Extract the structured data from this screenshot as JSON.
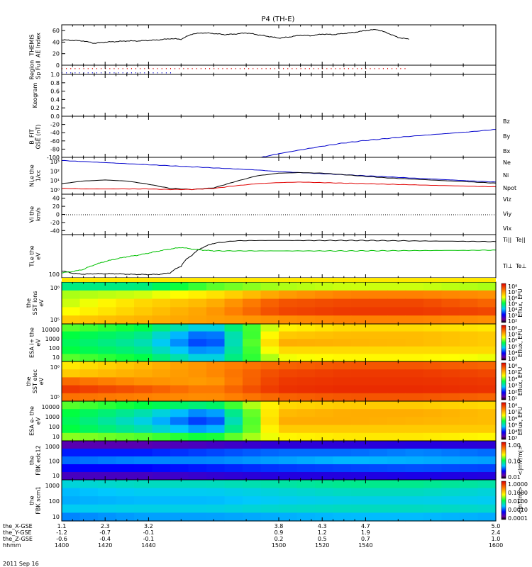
{
  "title": "P4 (TH-E)",
  "date_label": "2011 Sep 16",
  "x_axis": {
    "rows": [
      {
        "label": "the_X-GSE",
        "values": [
          "1.1",
          "2.3",
          "3.2",
          "3.8",
          "4.3",
          "4.7",
          "5.0"
        ]
      },
      {
        "label": "the_Y-GSE",
        "values": [
          "-1.2",
          "-0.7",
          "-0.1",
          "0.9",
          "1.2",
          "1.9",
          "2.4"
        ]
      },
      {
        "label": "the_Z-GSE",
        "values": [
          "-0.6",
          "-0.4",
          "-0.1",
          "0.2",
          "0.5",
          "0.7",
          "1.0"
        ]
      },
      {
        "label": "hhmm",
        "values": [
          "1400",
          "1420",
          "1440",
          "1500",
          "1520",
          "1540",
          "1600"
        ]
      }
    ],
    "minor_per_major": 4
  },
  "colors": {
    "red": "#e00000",
    "green": "#00c000",
    "blue": "#0000cc",
    "black": "#000000"
  },
  "chart_data": [
    {
      "type": "line",
      "panel": "ae",
      "ylabel": [
        "THEMIS",
        "AE Index"
      ],
      "ylim": [
        0,
        70
      ],
      "yticks": [
        "0",
        "20",
        "40",
        "60"
      ],
      "x": [
        1400,
        1405,
        1410,
        1415,
        1420,
        1425,
        1430,
        1435,
        1440,
        1445,
        1450,
        1455,
        1460,
        1465,
        1470,
        1475,
        1480,
        1485,
        1490,
        1495,
        1500,
        1505,
        1510,
        1515,
        1520,
        1525,
        1530,
        1535,
        1540,
        1545,
        1550,
        1555,
        1560
      ],
      "series": [
        {
          "color": "black",
          "values": [
            44,
            43,
            42,
            38,
            40,
            41,
            42,
            42,
            43,
            44,
            46,
            45,
            54,
            56,
            55,
            53,
            54,
            56,
            53,
            50,
            47,
            49,
            52,
            51,
            54,
            53,
            55,
            57,
            60,
            62,
            56,
            48,
            45
          ]
        }
      ]
    },
    {
      "type": "scatter",
      "panel": "region",
      "ylabel": [
        "Region",
        "Sp Full"
      ],
      "rows": [
        {
          "color": "red",
          "x_start": 1400,
          "x_end": 1558
        },
        {
          "color": "blue",
          "x_start": 1400,
          "x_end": 1450
        }
      ]
    },
    {
      "type": "line",
      "panel": "keogram",
      "ylabel": [
        "Keogram"
      ],
      "ylim": [
        0,
        1
      ],
      "yticks": [
        "0.0",
        "0.2",
        "0.4",
        "0.6",
        "0.8",
        "1.0"
      ],
      "series": []
    },
    {
      "type": "line",
      "panel": "bfield",
      "ylabel": [
        "B_FIT",
        "GSE (nT)"
      ],
      "ylim": [
        -100,
        0
      ],
      "yticks": [
        "-100",
        "-80",
        "-60",
        "-40",
        "-20"
      ],
      "legend": [
        {
          "label": "Bz",
          "color": "red"
        },
        {
          "label": "By",
          "color": "green"
        },
        {
          "label": "Bx",
          "color": "blue"
        }
      ],
      "x": [
        1492,
        1500,
        1510,
        1520,
        1530,
        1540,
        1550,
        1560,
        1570,
        1580,
        1590,
        1600
      ],
      "series": [
        {
          "name": "Bx",
          "color": "blue",
          "values": [
            -100,
            -91,
            -82,
            -73,
            -65,
            -59,
            -54,
            -49,
            -45,
            -41,
            -37,
            -32
          ]
        }
      ]
    },
    {
      "type": "line",
      "panel": "density",
      "ylabel": [
        "Ni,e the",
        "1/cc"
      ],
      "ylim": [
        0,
        3.5
      ],
      "log": true,
      "yticks": [
        "10³",
        "10²",
        "10¹",
        "10⁰"
      ],
      "legend": [
        {
          "label": "Ne",
          "color": "red"
        },
        {
          "label": "Ni",
          "color": "black"
        },
        {
          "label": "Npot",
          "color": "blue"
        }
      ],
      "x": [
        1400,
        1410,
        1420,
        1430,
        1440,
        1450,
        1460,
        1470,
        1480,
        1490,
        1500,
        1510,
        1520,
        1530,
        1540,
        1550,
        1560,
        1570,
        1580,
        1590,
        1600
      ],
      "series": [
        {
          "name": "Npot",
          "color": "blue",
          "values": [
            3.2,
            3.1,
            3.0,
            2.9,
            2.8,
            2.7,
            2.6,
            2.5,
            2.4,
            2.3,
            2.15,
            2.05,
            1.95,
            1.85,
            1.75,
            1.65,
            1.55,
            1.45,
            1.35,
            1.25,
            1.15
          ]
        },
        {
          "name": "Ni",
          "color": "black",
          "values": [
            1.0,
            1.25,
            1.35,
            1.25,
            0.95,
            0.55,
            0.45,
            0.6,
            1.2,
            1.75,
            2.0,
            2.05,
            2.0,
            1.85,
            1.7,
            1.55,
            1.45,
            1.35,
            1.25,
            1.15,
            1.05
          ]
        },
        {
          "name": "Ne",
          "color": "red",
          "values": [
            0.55,
            0.5,
            0.5,
            0.5,
            0.5,
            0.45,
            0.45,
            0.55,
            0.8,
            1.0,
            1.1,
            1.15,
            1.1,
            1.05,
            1.0,
            0.95,
            0.9,
            0.85,
            0.8,
            0.75,
            0.7
          ]
        }
      ]
    },
    {
      "type": "line",
      "panel": "velocity",
      "ylabel": [
        "Vi the",
        "km/s"
      ],
      "ylim": [
        -50,
        50
      ],
      "yticks": [
        "-40",
        "-20",
        "0",
        "20",
        "40"
      ],
      "legend": [
        {
          "label": "Viz",
          "color": "red"
        },
        {
          "label": "Viy",
          "color": "green"
        },
        {
          "label": "Vix",
          "color": "blue"
        }
      ],
      "series": []
    },
    {
      "type": "line",
      "panel": "temperature",
      "ylabel": [
        "Ti,e the",
        "eV"
      ],
      "ylim": [
        70,
        5000
      ],
      "log": true,
      "yticks": [
        "100"
      ],
      "legend": [
        {
          "label": "Ti||",
          "color": "green"
        },
        {
          "label": "Te||",
          "color": "black"
        },
        {
          "label": "Ti⊥",
          "color": "blue"
        },
        {
          "label": "Te⊥",
          "color": "red"
        }
      ],
      "x": [
        1400,
        1405,
        1410,
        1415,
        1420,
        1425,
        1430,
        1435,
        1440,
        1445,
        1450,
        1455,
        1460,
        1465,
        1470,
        1480,
        1490,
        1500,
        1510,
        1520,
        1530,
        1540,
        1550,
        1560,
        1570,
        1580,
        1590,
        1600
      ],
      "series": [
        {
          "name": "Te||",
          "color": "black",
          "values": [
            140,
            110,
            100,
            105,
            105,
            105,
            100,
            98,
            97,
            99,
            115,
            220,
            650,
            1400,
            2100,
            2700,
            2800,
            2800,
            2800,
            2800,
            2800,
            2800,
            2750,
            2700,
            2650,
            2600,
            2550,
            2500
          ]
        },
        {
          "name": "Ti||",
          "color": "green",
          "values": [
            115,
            130,
            160,
            250,
            350,
            450,
            560,
            650,
            800,
            1000,
            1200,
            1400,
            1200,
            1080,
            1000,
            1000,
            1000,
            1000,
            1000,
            1000,
            1000,
            1010,
            1020,
            1030,
            1040,
            1050,
            1060,
            1080
          ]
        }
      ]
    },
    {
      "type": "heatmap",
      "panel": "sst_ions",
      "ylabel": [
        "the",
        "SST ions",
        "eV"
      ],
      "yticks": [
        "10⁶",
        "10⁵"
      ],
      "colorbar": {
        "label": "Eflux, EFU",
        "ticks": [
          "10⁸",
          "10⁷",
          "10⁶",
          "10⁵",
          "10⁴",
          "10³",
          "10²"
        ]
      },
      "columns": [
        "1400",
        "1420",
        "1440",
        "1500",
        "1520",
        "1540",
        "1600"
      ],
      "rows": [
        [
          0.45,
          0.45,
          0.55,
          0.6,
          0.62,
          0.62,
          0.6
        ],
        [
          0.6,
          0.62,
          0.68,
          0.78,
          0.82,
          0.82,
          0.8
        ],
        [
          0.62,
          0.7,
          0.75,
          0.88,
          0.9,
          0.9,
          0.86
        ],
        [
          0.65,
          0.72,
          0.78,
          0.9,
          0.92,
          0.92,
          0.9
        ],
        [
          0.72,
          0.75,
          0.78,
          0.8,
          0.82,
          0.82,
          0.8
        ]
      ]
    },
    {
      "type": "heatmap",
      "panel": "esa_ions",
      "ylabel": [
        "ESA i+ the",
        "eV"
      ],
      "yticks": [
        "10000",
        "1000",
        "100",
        "10"
      ],
      "colorbar": {
        "label": "Eflux, EFU",
        "ticks": [
          "10⁸",
          "10⁷",
          "10⁶",
          "10⁵",
          "10⁴",
          "10³"
        ]
      },
      "columns": [
        "1400",
        "1420",
        "1440",
        "1500",
        "1520",
        "1540",
        "1600"
      ],
      "rows": [
        [
          0.55,
          0.5,
          0.35,
          0.66,
          0.7,
          0.7,
          0.68
        ],
        [
          0.5,
          0.45,
          0.25,
          0.72,
          0.74,
          0.74,
          0.72
        ],
        [
          0.48,
          0.42,
          0.22,
          0.76,
          0.75,
          0.74,
          0.72
        ],
        [
          0.5,
          0.45,
          0.28,
          0.7,
          0.7,
          0.7,
          0.7
        ],
        [
          0.55,
          0.5,
          0.35,
          0.64,
          0.66,
          0.66,
          0.64
        ]
      ]
    },
    {
      "type": "heatmap",
      "panel": "sst_elec",
      "ylabel": [
        "the",
        "SST elec",
        "eV"
      ],
      "yticks": [
        "10⁶",
        "10⁵"
      ],
      "colorbar": {
        "label": "Eflux, EFU",
        "ticks": [
          "10⁶",
          "10⁵",
          "10⁴",
          "10³",
          "10²",
          "10¹"
        ]
      },
      "columns": [
        "1400",
        "1420",
        "1440",
        "1500",
        "1520",
        "1540",
        "1600"
      ],
      "rows": [
        [
          0.68,
          0.74,
          0.8,
          0.86,
          0.88,
          0.88,
          0.86
        ],
        [
          0.72,
          0.76,
          0.8,
          0.9,
          0.92,
          0.92,
          0.9
        ],
        [
          0.85,
          0.8,
          0.78,
          0.92,
          0.93,
          0.93,
          0.92
        ],
        [
          0.92,
          0.88,
          0.82,
          0.93,
          0.94,
          0.94,
          0.93
        ],
        [
          0.84,
          0.82,
          0.8,
          0.86,
          0.88,
          0.88,
          0.86
        ]
      ]
    },
    {
      "type": "heatmap",
      "panel": "esa_elec",
      "ylabel": [
        "ESA e- the",
        "eV"
      ],
      "yticks": [
        "10000",
        "1000",
        "100",
        "10"
      ],
      "colorbar": {
        "label": "Eflux, EFU",
        "ticks": [
          "10⁸",
          "10⁷",
          "10⁶",
          "10⁵",
          "10⁴",
          "10³"
        ]
      },
      "columns": [
        "1400",
        "1420",
        "1440",
        "1500",
        "1520",
        "1540",
        "1600"
      ],
      "rows": [
        [
          0.55,
          0.5,
          0.45,
          0.7,
          0.72,
          0.72,
          0.7
        ],
        [
          0.5,
          0.42,
          0.28,
          0.74,
          0.76,
          0.76,
          0.74
        ],
        [
          0.48,
          0.38,
          0.22,
          0.76,
          0.76,
          0.75,
          0.74
        ],
        [
          0.5,
          0.42,
          0.3,
          0.72,
          0.72,
          0.72,
          0.72
        ],
        [
          0.58,
          0.55,
          0.5,
          0.66,
          0.68,
          0.68,
          0.66
        ]
      ]
    },
    {
      "type": "heatmap",
      "panel": "fbk_edc12",
      "ylabel": [
        "the",
        "FBK edc12"
      ],
      "yticks": [
        "1000",
        "100",
        "10"
      ],
      "colorbar": {
        "label": "<|mV/m|>",
        "ticks": [
          "1.00",
          "0.10",
          "0.01"
        ]
      },
      "columns": [
        "1400",
        "1420",
        "1440",
        "1500",
        "1520",
        "1540",
        "1600"
      ],
      "rows": [
        [
          0.1,
          0.1,
          0.12,
          0.15,
          0.15,
          0.16,
          0.15
        ],
        [
          0.22,
          0.22,
          0.25,
          0.28,
          0.28,
          0.3,
          0.28
        ],
        [
          0.28,
          0.3,
          0.3,
          0.32,
          0.34,
          0.33,
          0.32
        ],
        [
          0.2,
          0.2,
          0.22,
          0.24,
          0.25,
          0.26,
          0.25
        ],
        [
          0.12,
          0.12,
          0.14,
          0.16,
          0.16,
          0.17,
          0.16
        ]
      ]
    },
    {
      "type": "heatmap",
      "panel": "fbk_scm1",
      "ylabel": [
        "the",
        "FBK scm1"
      ],
      "yticks": [
        "1000",
        "100",
        "10"
      ],
      "colorbar": {
        "label": "<|nT/m|>",
        "ticks": [
          "1.0000",
          "0.1000",
          "0.0100",
          "0.0010",
          "0.0001"
        ]
      },
      "columns": [
        "1400",
        "1420",
        "1440",
        "1500",
        "1520",
        "1540",
        "1600"
      ],
      "rows": [
        [
          0.38,
          0.4,
          0.4,
          0.42,
          0.44,
          0.44,
          0.42
        ],
        [
          0.34,
          0.36,
          0.36,
          0.38,
          0.4,
          0.4,
          0.38
        ],
        [
          0.33,
          0.34,
          0.34,
          0.36,
          0.37,
          0.37,
          0.36
        ],
        [
          0.36,
          0.37,
          0.37,
          0.39,
          0.4,
          0.4,
          0.39
        ],
        [
          0.3,
          0.32,
          0.32,
          0.33,
          0.34,
          0.34,
          0.33
        ]
      ]
    }
  ]
}
